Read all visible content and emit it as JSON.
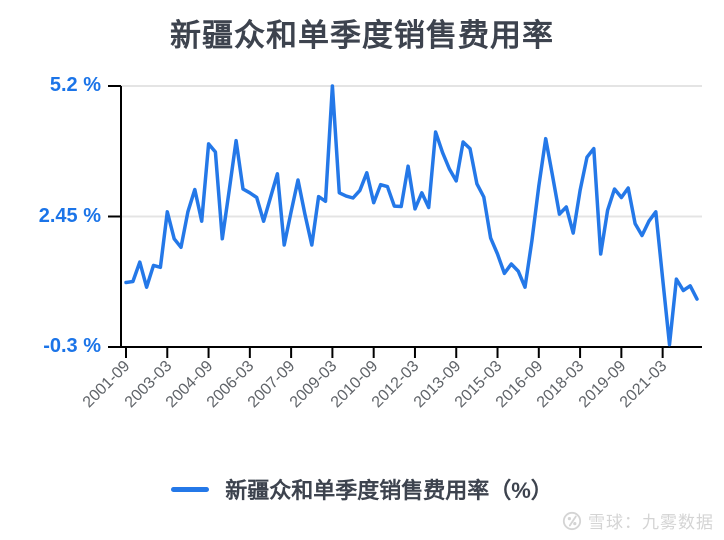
{
  "title": "新疆众和单季度销售费用率",
  "legend": {
    "label": "新疆众和单季度销售费用率（%）"
  },
  "watermark": {
    "text": "雪球：九雾数据"
  },
  "chart_data": {
    "type": "line",
    "title": "新疆众和单季度销售费用率",
    "series_name": "新疆众和单季度销售费用率（%）",
    "ylim": [
      -0.3,
      5.2
    ],
    "grid": true,
    "legend_position": "bottom",
    "colors": {
      "line": "#2478e8",
      "axis": "#000000",
      "grid": "#e4e4e4",
      "y_label": "#1b74e8",
      "x_label": "#5f6368",
      "title": "#3d434e",
      "watermark": "#d4d4d4"
    },
    "y_ticks": [
      {
        "label": "5.2 %",
        "value": 5.2
      },
      {
        "label": "2.45 %",
        "value": 2.45
      },
      {
        "label": "-0.3 %",
        "value": -0.3
      }
    ],
    "x_tick_labels": [
      "2001-09",
      "2003-03",
      "2004-09",
      "2006-03",
      "2007-09",
      "2009-03",
      "2010-09",
      "2012-03",
      "2013-09",
      "2015-03",
      "2016-09",
      "2018-03",
      "2019-09",
      "2021-03"
    ],
    "x": [
      "2001-09",
      "2001-12",
      "2002-03",
      "2002-06",
      "2002-09",
      "2002-12",
      "2003-03",
      "2003-06",
      "2003-09",
      "2003-12",
      "2004-03",
      "2004-06",
      "2004-09",
      "2004-12",
      "2005-03",
      "2005-06",
      "2005-09",
      "2005-12",
      "2006-03",
      "2006-06",
      "2006-09",
      "2006-12",
      "2007-03",
      "2007-06",
      "2007-09",
      "2007-12",
      "2008-03",
      "2008-06",
      "2008-09",
      "2008-12",
      "2009-03",
      "2009-06",
      "2009-09",
      "2009-12",
      "2010-03",
      "2010-06",
      "2010-09",
      "2010-12",
      "2011-03",
      "2011-06",
      "2011-09",
      "2011-12",
      "2012-03",
      "2012-06",
      "2012-09",
      "2012-12",
      "2013-03",
      "2013-06",
      "2013-09",
      "2013-12",
      "2014-03",
      "2014-06",
      "2014-09",
      "2014-12",
      "2015-03",
      "2015-06",
      "2015-09",
      "2015-12",
      "2016-03",
      "2016-06",
      "2016-09",
      "2016-12",
      "2017-03",
      "2017-06",
      "2017-09",
      "2017-12",
      "2018-03",
      "2018-06",
      "2018-09",
      "2018-12",
      "2019-03",
      "2019-06",
      "2019-09",
      "2019-12",
      "2020-03",
      "2020-06",
      "2020-09",
      "2020-12",
      "2021-03",
      "2021-06",
      "2021-09",
      "2021-12",
      "2022-03",
      "2022-06"
    ],
    "values": [
      1.06,
      1.08,
      1.49,
      0.96,
      1.42,
      1.38,
      2.55,
      1.98,
      1.8,
      2.55,
      3.02,
      2.35,
      3.98,
      3.81,
      1.98,
      3.0,
      4.05,
      3.03,
      2.95,
      2.85,
      2.35,
      2.85,
      3.35,
      1.85,
      2.55,
      3.22,
      2.5,
      1.85,
      2.87,
      2.77,
      5.2,
      2.95,
      2.88,
      2.84,
      3.0,
      3.37,
      2.74,
      3.12,
      3.08,
      2.67,
      2.66,
      3.51,
      2.61,
      2.95,
      2.64,
      4.23,
      3.8,
      3.45,
      3.2,
      4.02,
      3.88,
      3.14,
      2.86,
      2.0,
      1.66,
      1.25,
      1.45,
      1.3,
      0.96,
      1.94,
      3.09,
      4.09,
      3.3,
      2.5,
      2.65,
      2.1,
      3.0,
      3.7,
      3.88,
      1.66,
      2.58,
      3.03,
      2.85,
      3.05,
      2.3,
      2.05,
      2.35,
      2.55,
      1.15,
      -0.25,
      1.13,
      0.89,
      0.99,
      0.71
    ]
  }
}
